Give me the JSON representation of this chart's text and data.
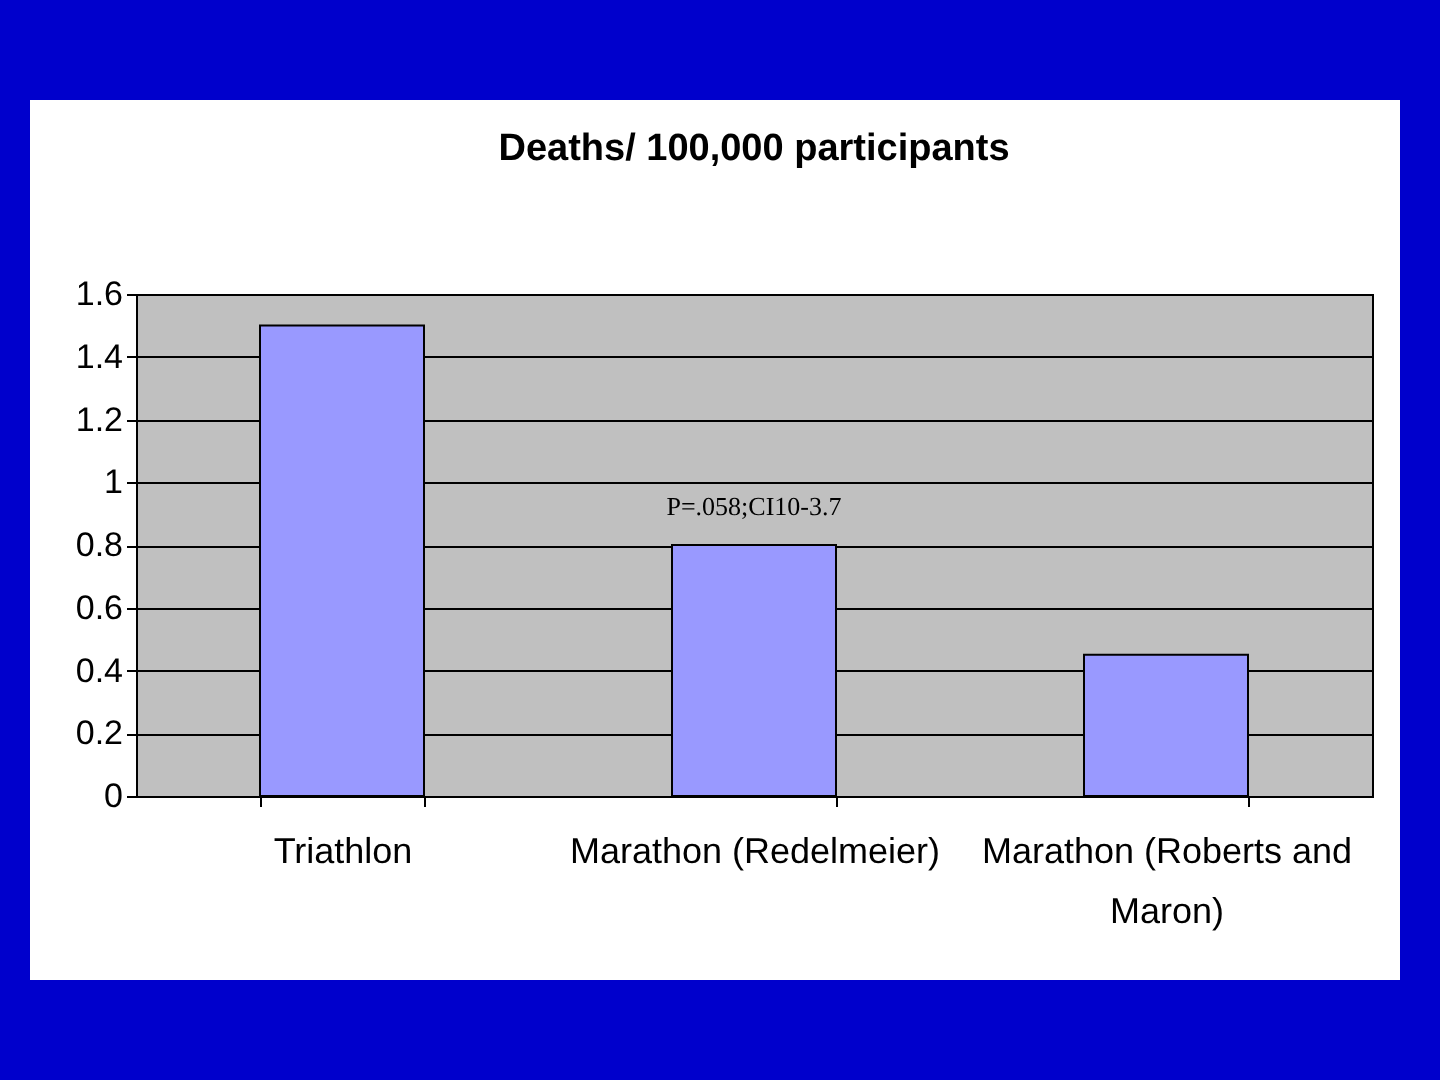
{
  "chart_data": {
    "type": "bar",
    "title": "Deaths/ 100,000 participants",
    "categories": [
      "Triathlon",
      "Marathon (Redelmeier)",
      "Marathon (Roberts and Maron)"
    ],
    "values": [
      1.5,
      0.8,
      0.45
    ],
    "color": "#9999ff",
    "ylim": [
      0,
      1.6
    ],
    "yticks": [
      0,
      0.2,
      0.4,
      0.6,
      0.8,
      1,
      1.2,
      1.4,
      1.6
    ],
    "grid": "y",
    "annotations": [
      {
        "text": "P=.058;CI10-3.7",
        "x": "Marathon (Redelmeier)",
        "y": 0.8
      }
    ]
  }
}
